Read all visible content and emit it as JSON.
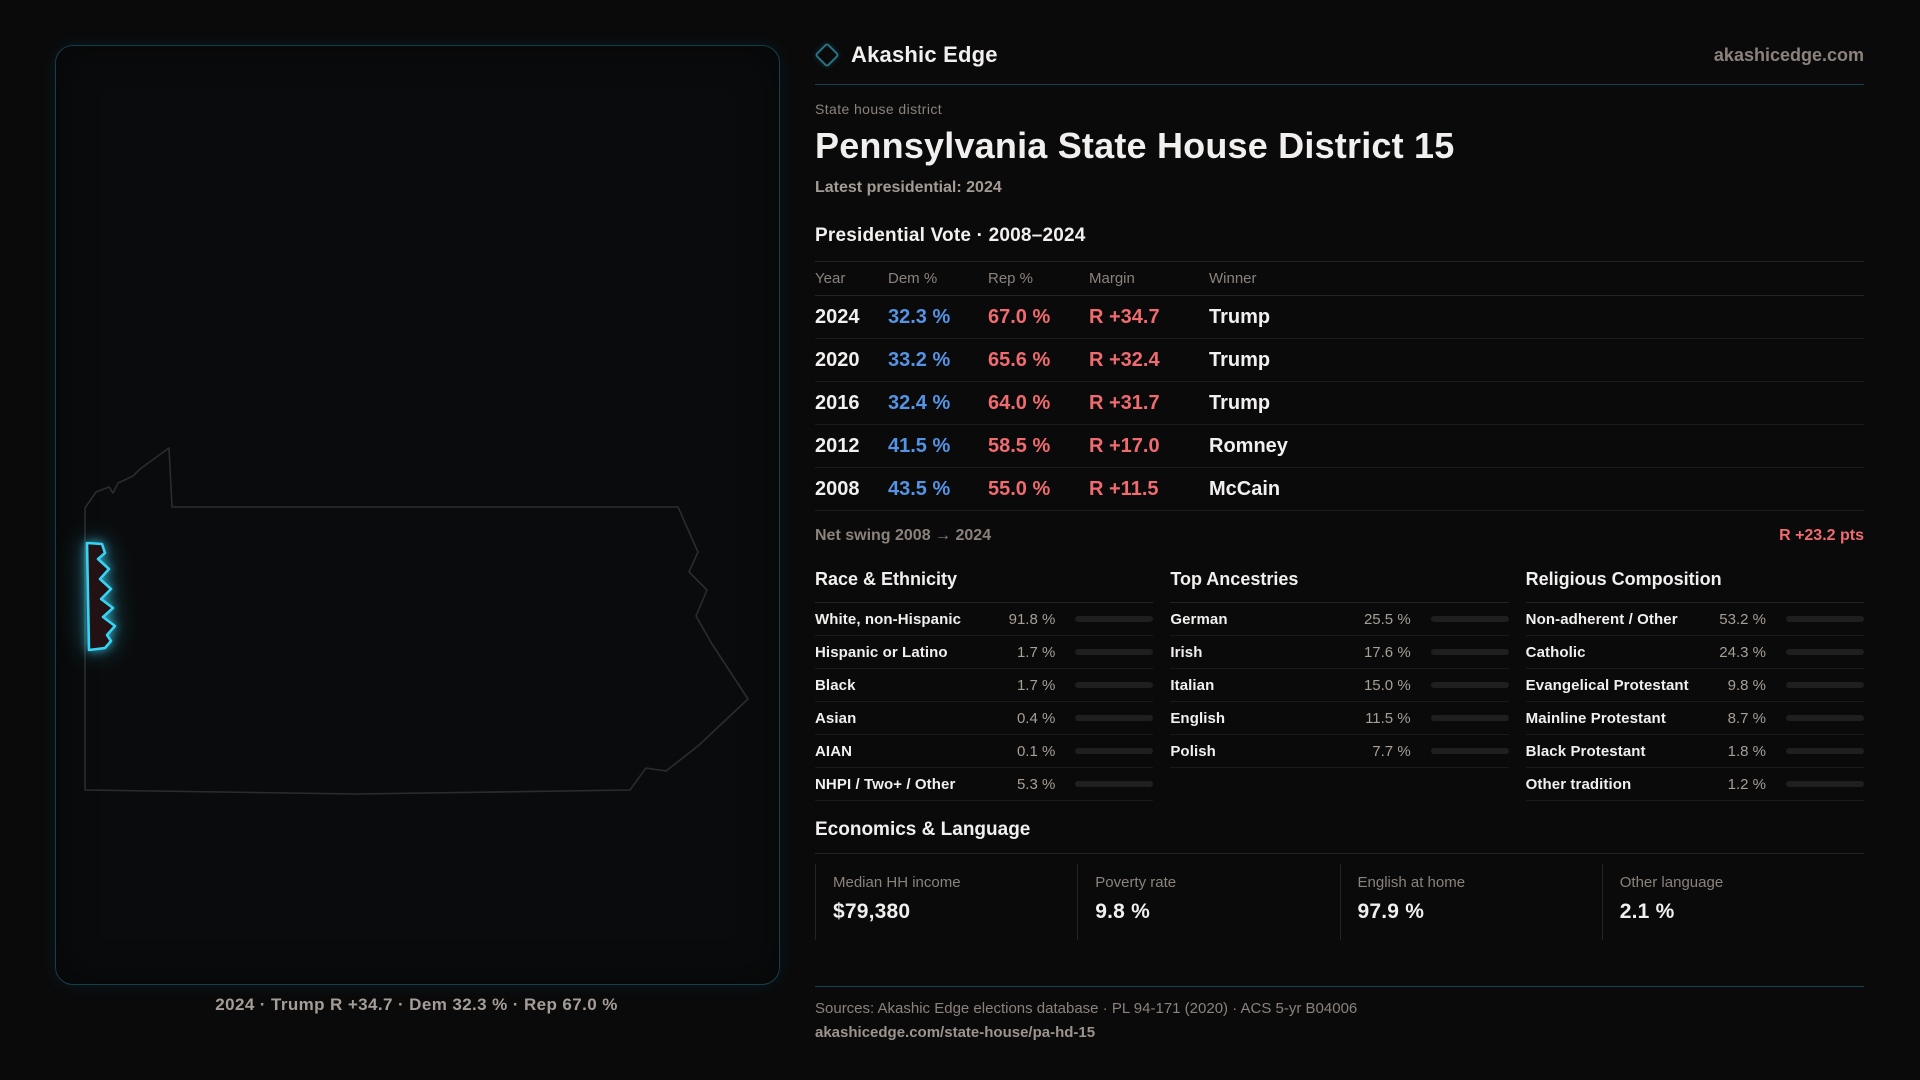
{
  "brand": {
    "name": "Akashic Edge",
    "domain": "akashicedge.com",
    "logo_icon": "diamond-icon",
    "accent_teal": "#15434d",
    "district_accent": "#38d3f3"
  },
  "page": {
    "eyebrow": "State house district",
    "title": "Pennsylvania State House District 15",
    "latest_line": "Latest presidential: 2024"
  },
  "map": {
    "region": "Pennsylvania",
    "caption": "2024 · Trump R +34.7 · Dem 32.3 % · Rep 67.0 %"
  },
  "election": {
    "heading": "Presidential Vote · 2008–2024",
    "columns": {
      "year": "Year",
      "dem": "Dem %",
      "rep": "Rep %",
      "margin": "Margin",
      "winner": "Winner"
    },
    "dem_color": "#5593e4",
    "rep_color": "#ef6b6f",
    "rows": [
      {
        "year": "2024",
        "dem": "32.3 %",
        "rep": "67.0 %",
        "margin": "R +34.7",
        "winner": "Trump"
      },
      {
        "year": "2020",
        "dem": "33.2 %",
        "rep": "65.6 %",
        "margin": "R +32.4",
        "winner": "Trump"
      },
      {
        "year": "2016",
        "dem": "32.4 %",
        "rep": "64.0 %",
        "margin": "R +31.7",
        "winner": "Trump"
      },
      {
        "year": "2012",
        "dem": "41.5 %",
        "rep": "58.5 %",
        "margin": "R +17.0",
        "winner": "Romney"
      },
      {
        "year": "2008",
        "dem": "43.5 %",
        "rep": "55.0 %",
        "margin": "R +11.5",
        "winner": "McCain"
      }
    ],
    "net_swing_label": "Net swing 2008 → 2024",
    "net_swing_value": "R +23.2 pts"
  },
  "demographics": {
    "race": {
      "heading": "Race & Ethnicity",
      "rows": [
        {
          "label": "White, non-Hispanic",
          "value": "91.8 %",
          "pct": 91.8
        },
        {
          "label": "Hispanic or Latino",
          "value": "1.7 %",
          "pct": 1.7
        },
        {
          "label": "Black",
          "value": "1.7 %",
          "pct": 1.7
        },
        {
          "label": "Asian",
          "value": "0.4 %",
          "pct": 0.4
        },
        {
          "label": "AIAN",
          "value": "0.1 %",
          "pct": 0.1
        },
        {
          "label": "NHPI / Two+ / Other",
          "value": "5.3 %",
          "pct": 5.3
        }
      ]
    },
    "ancestry": {
      "heading": "Top Ancestries",
      "rows": [
        {
          "label": "German",
          "value": "25.5 %",
          "pct": 25.5
        },
        {
          "label": "Irish",
          "value": "17.6 %",
          "pct": 17.6
        },
        {
          "label": "Italian",
          "value": "15.0 %",
          "pct": 15.0
        },
        {
          "label": "English",
          "value": "11.5 %",
          "pct": 11.5
        },
        {
          "label": "Polish",
          "value": "7.7 %",
          "pct": 7.7
        }
      ]
    },
    "religion": {
      "heading": "Religious Composition",
      "rows": [
        {
          "label": "Non-adherent / Other",
          "value": "53.2 %",
          "pct": 53.2
        },
        {
          "label": "Catholic",
          "value": "24.3 %",
          "pct": 24.3
        },
        {
          "label": "Evangelical Protestant",
          "value": "9.8 %",
          "pct": 9.8
        },
        {
          "label": "Mainline Protestant",
          "value": "8.7 %",
          "pct": 8.7
        },
        {
          "label": "Black Protestant",
          "value": "1.8 %",
          "pct": 1.8
        },
        {
          "label": "Other tradition",
          "value": "1.2 %",
          "pct": 1.2
        }
      ]
    }
  },
  "economics": {
    "heading": "Economics & Language",
    "cards": [
      {
        "label": "Median HH income",
        "value": "$79,380"
      },
      {
        "label": "Poverty rate",
        "value": "9.8 %"
      },
      {
        "label": "English at home",
        "value": "97.9 %"
      },
      {
        "label": "Other language",
        "value": "2.1 %"
      }
    ]
  },
  "footer": {
    "sources": "Sources: Akashic Edge elections database · PL 94-171 (2020) · ACS 5-yr B04006",
    "permalink": "akashicedge.com/state-house/pa-hd-15"
  }
}
